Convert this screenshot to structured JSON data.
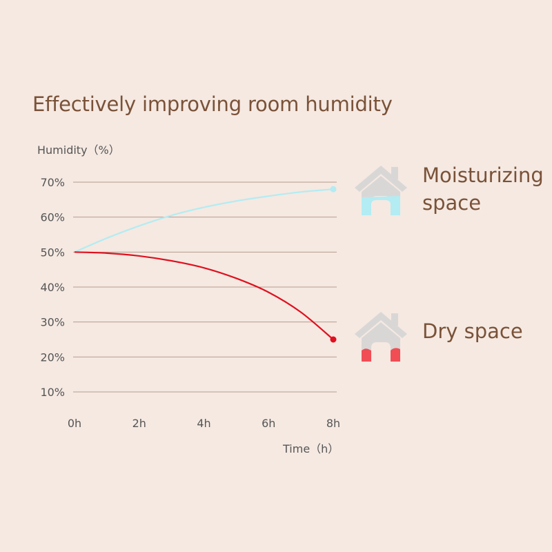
{
  "colors": {
    "background": "#f5e9e2",
    "title": "#7a5238",
    "gridline": "#b89a8c",
    "moisturizing": "#b3ecf2",
    "dry": "#e0101e",
    "house": "#d9d7d6"
  },
  "chart_data": {
    "type": "line",
    "title": "Effectively improving room humidity",
    "ylabel": "Humidity（%）",
    "xlabel": "Time（h）",
    "x_ticks": [
      "0h",
      "2h",
      "4h",
      "6h",
      "8h"
    ],
    "y_ticks": [
      "70%",
      "60%",
      "50%",
      "40%",
      "30%",
      "20%",
      "10%"
    ],
    "xlim": [
      0,
      8
    ],
    "ylim": [
      10,
      70
    ],
    "grid": true,
    "series": [
      {
        "name": "Moisturizing space",
        "color": "#b3ecf2",
        "x": [
          0,
          1,
          2,
          3,
          4,
          5,
          6,
          7,
          8
        ],
        "y": [
          50,
          54,
          57.5,
          60.5,
          62.8,
          64.6,
          66,
          67.2,
          68
        ]
      },
      {
        "name": "Dry space",
        "color": "#e0101e",
        "x": [
          0,
          1,
          2,
          3,
          4,
          5,
          6,
          7,
          8
        ],
        "y": [
          50,
          49.7,
          48.9,
          47.5,
          45.5,
          42.5,
          38.5,
          32.8,
          25
        ]
      }
    ]
  },
  "legend": {
    "moisturizing": {
      "label": "Moisturizing space",
      "icon": "house-icon",
      "fill_level": 0.55
    },
    "dry": {
      "label": "Dry space",
      "icon": "house-icon",
      "fill_level": 0.3
    }
  }
}
